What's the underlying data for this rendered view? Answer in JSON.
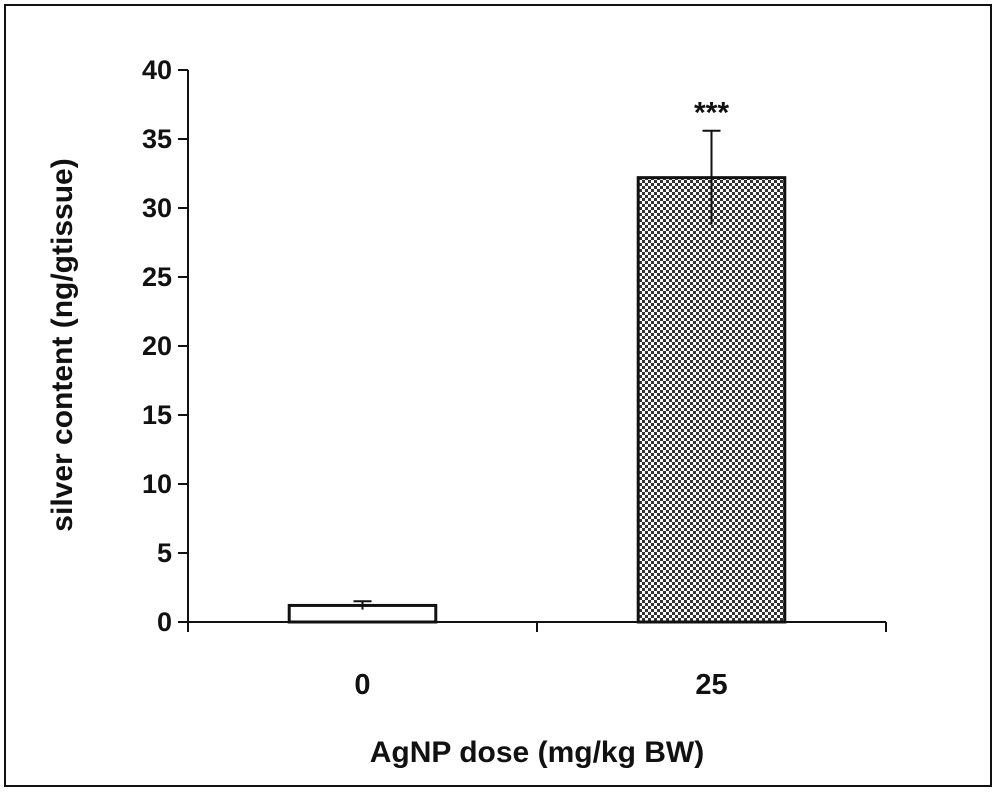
{
  "chart_data": {
    "type": "bar",
    "categories": [
      "0",
      "25"
    ],
    "values": [
      1.2,
      32.2
    ],
    "errors": [
      0.3,
      3.4
    ],
    "annotations": [
      "",
      "***"
    ],
    "xlabel": "AgNP dose (mg/kg BW)",
    "ylabel": "silver content (ng/gtissue)",
    "ylim": [
      0,
      40
    ],
    "yticks": [
      "0",
      "5",
      "10",
      "15",
      "20",
      "25",
      "30",
      "35",
      "40"
    ],
    "grid": false,
    "bar_fills": [
      "#ffffff",
      "checkered-gray"
    ]
  }
}
